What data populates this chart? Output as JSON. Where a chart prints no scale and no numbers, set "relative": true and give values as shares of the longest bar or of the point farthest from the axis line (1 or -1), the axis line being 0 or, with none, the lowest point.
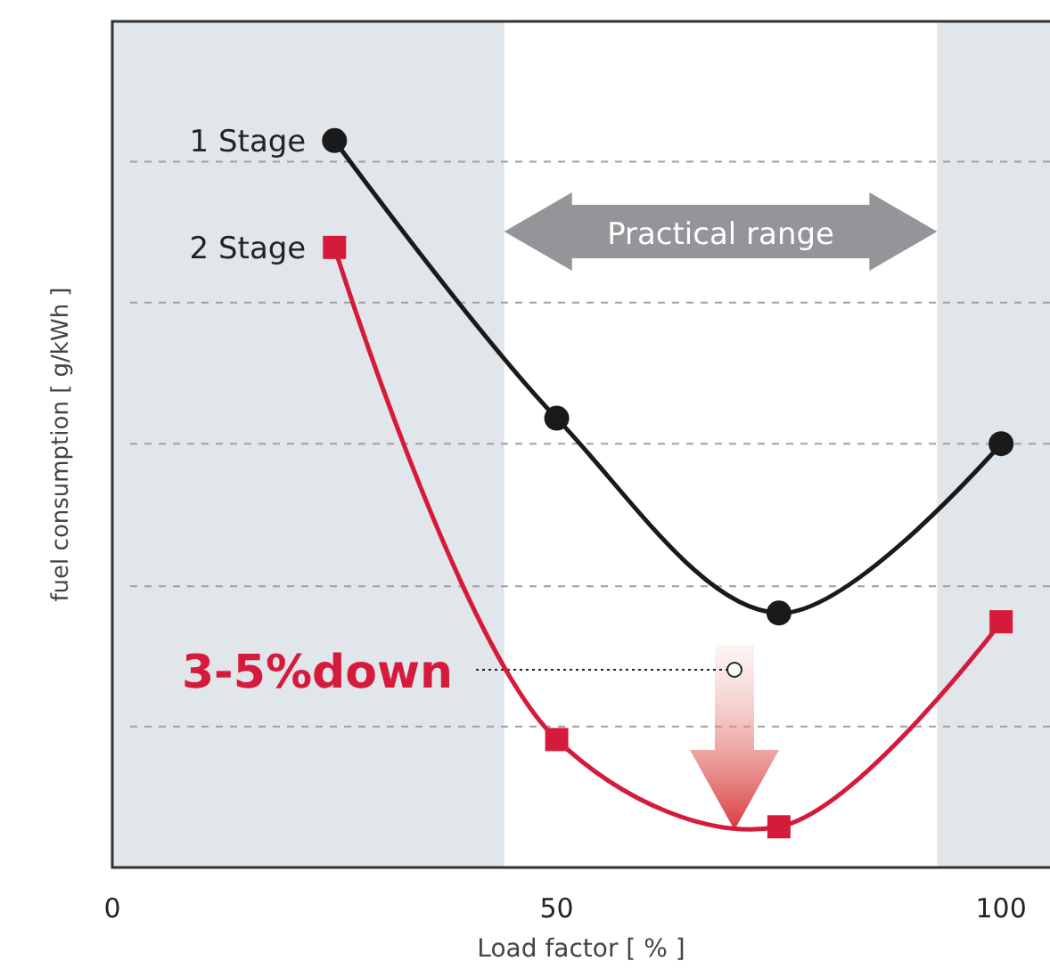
{
  "chart_data": {
    "type": "line",
    "relative": true,
    "xlabel": "Load factor [ % ]",
    "ylabel": "fuel consumption [ g/kWh ]",
    "x": [
      25,
      50,
      75,
      100
    ],
    "xlim": [
      0,
      105.5
    ],
    "xticks": [
      0,
      50,
      100
    ],
    "legend": false,
    "series": [
      {
        "name": "1 Stage",
        "color": "#1a1a1a",
        "marker": "circle",
        "values": [
          1,
          0.618,
          0.35,
          0.583
        ]
      },
      {
        "name": "2 Stage",
        "color": "#d61a3c",
        "marker": "square",
        "values": [
          0.853,
          0.176,
          0.056,
          0.338
        ]
      }
    ],
    "bands": [
      {
        "axis": "x",
        "from": 0,
        "to": 44.1,
        "color": "#e1e6ea"
      },
      {
        "axis": "x",
        "from": 92.8,
        "to": 105.5,
        "color": "#e1e6ea"
      }
    ],
    "ref_lines": [
      {
        "axis": "y",
        "value": 0.971,
        "color": "#a0a0a0",
        "line_style": "dashed"
      },
      {
        "axis": "y",
        "value": 0.777,
        "color": "#a0a0a0",
        "line_style": "dashed"
      },
      {
        "axis": "y",
        "value": 0.583,
        "color": "#a0a0a0",
        "line_style": "dashed"
      },
      {
        "axis": "y",
        "value": 0.387,
        "color": "#a0a0a0",
        "line_style": "dashed"
      },
      {
        "axis": "y",
        "value": 0.194,
        "color": "#a0a0a0",
        "line_style": "dashed"
      }
    ],
    "annotations": [
      "Practical range",
      {
        "text": "3-5%down",
        "x": 70,
        "y": 0.272
      }
    ]
  }
}
